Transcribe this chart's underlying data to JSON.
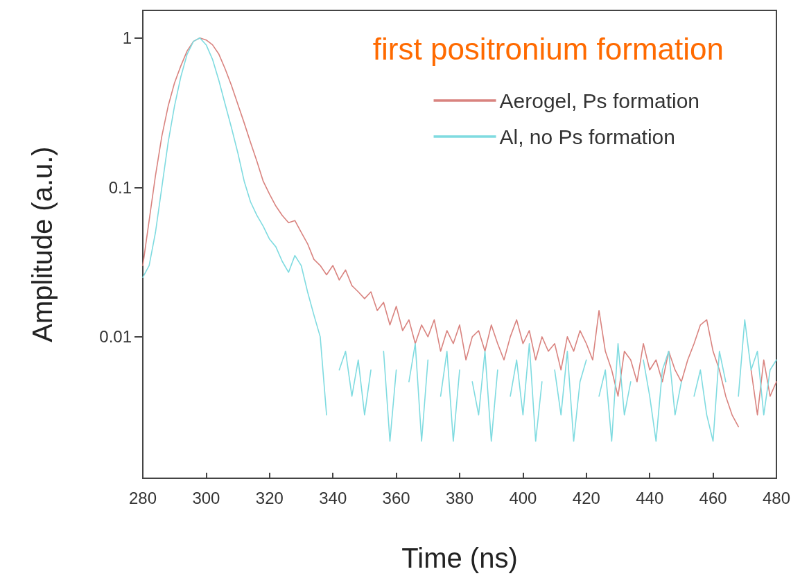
{
  "chart_data": {
    "type": "line",
    "xlabel": "Time (ns)",
    "ylabel": "Amplitude (a.u.)",
    "annotations": [
      "first positronium formation"
    ],
    "x": [
      280,
      282,
      284,
      286,
      288,
      290,
      292,
      294,
      296,
      298,
      300,
      302,
      304,
      306,
      308,
      310,
      312,
      314,
      316,
      318,
      320,
      322,
      324,
      326,
      328,
      330,
      332,
      334,
      336,
      338,
      340,
      342,
      344,
      346,
      348,
      350,
      352,
      354,
      356,
      358,
      360,
      362,
      364,
      366,
      368,
      370,
      372,
      374,
      376,
      378,
      380,
      382,
      384,
      386,
      388,
      390,
      392,
      394,
      396,
      398,
      400,
      402,
      404,
      406,
      408,
      410,
      412,
      414,
      416,
      418,
      420,
      422,
      424,
      426,
      428,
      430,
      432,
      434,
      436,
      438,
      440,
      442,
      444,
      446,
      448,
      450,
      452,
      454,
      456,
      458,
      460,
      462,
      464,
      466,
      468,
      470,
      472,
      474,
      476,
      478,
      480
    ],
    "series": [
      {
        "name": "Aerogel, Ps formation",
        "color": "#d9837f",
        "values": [
          0.03,
          0.06,
          0.12,
          0.22,
          0.35,
          0.5,
          0.65,
          0.82,
          0.95,
          1.0,
          0.97,
          0.9,
          0.78,
          0.62,
          0.48,
          0.36,
          0.27,
          0.2,
          0.15,
          0.11,
          0.09,
          0.075,
          0.065,
          0.058,
          0.06,
          0.05,
          0.042,
          0.033,
          0.03,
          0.026,
          0.03,
          0.024,
          0.028,
          0.022,
          0.02,
          0.018,
          0.02,
          0.015,
          0.017,
          0.012,
          0.016,
          0.011,
          0.013,
          0.009,
          0.012,
          0.01,
          0.013,
          0.008,
          0.011,
          0.009,
          0.012,
          0.007,
          0.01,
          0.011,
          0.008,
          0.012,
          0.009,
          0.007,
          0.01,
          0.013,
          0.009,
          0.011,
          0.007,
          0.01,
          0.008,
          0.009,
          0.006,
          0.01,
          0.008,
          0.011,
          0.009,
          0.007,
          0.015,
          0.008,
          0.006,
          0.004,
          0.008,
          0.007,
          0.005,
          0.009,
          0.006,
          0.007,
          0.005,
          0.008,
          0.006,
          0.005,
          0.007,
          0.009,
          0.012,
          0.013,
          0.008,
          0.006,
          0.004,
          0.003,
          0.0025,
          null,
          0.006,
          0.003,
          0.007,
          0.004,
          0.005
        ]
      },
      {
        "name": "Al, no Ps formation",
        "color": "#7fdbe0",
        "values": [
          0.025,
          0.03,
          0.05,
          0.1,
          0.2,
          0.35,
          0.55,
          0.78,
          0.95,
          1.0,
          0.9,
          0.72,
          0.52,
          0.36,
          0.25,
          0.17,
          0.11,
          0.08,
          0.065,
          0.055,
          0.045,
          0.04,
          0.032,
          0.027,
          0.035,
          0.03,
          0.02,
          0.014,
          0.01,
          0.003,
          null,
          0.006,
          0.008,
          0.004,
          0.007,
          0.003,
          0.006,
          null,
          0.008,
          0.002,
          0.006,
          null,
          0.005,
          0.009,
          0.002,
          0.007,
          null,
          0.004,
          0.008,
          0.002,
          0.006,
          null,
          0.005,
          0.003,
          0.008,
          0.002,
          0.006,
          null,
          0.004,
          0.007,
          0.003,
          0.009,
          0.002,
          0.005,
          null,
          0.006,
          0.003,
          0.008,
          0.002,
          0.005,
          0.007,
          null,
          0.004,
          0.006,
          0.002,
          0.009,
          0.003,
          0.005,
          null,
          0.007,
          0.004,
          0.002,
          0.006,
          0.008,
          0.003,
          0.005,
          null,
          0.004,
          0.006,
          0.003,
          0.002,
          0.008,
          0.005,
          null,
          0.004,
          0.013,
          0.006,
          0.008,
          0.003,
          0.006,
          0.007
        ]
      }
    ],
    "xlim": [
      280,
      480
    ],
    "xticks": [
      280,
      300,
      320,
      340,
      360,
      380,
      400,
      420,
      440,
      460,
      480
    ],
    "ylim": [
      0.00113,
      1.53
    ],
    "yticks": [
      0.01,
      0.1,
      1
    ],
    "log": "y",
    "legend": "top right",
    "marker": "none",
    "line_style": "solid"
  }
}
